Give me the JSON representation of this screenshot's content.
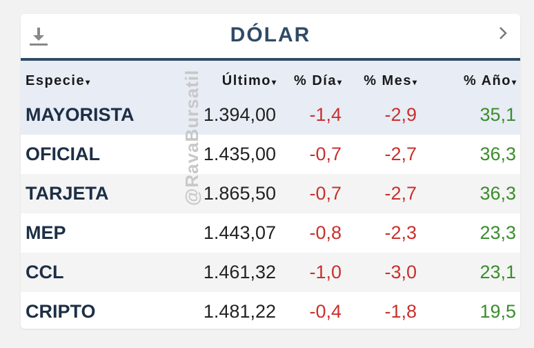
{
  "widget": {
    "title": "DÓLAR",
    "watermark": "@RavaBursatil",
    "columns": [
      {
        "label": "Especie",
        "sort": "▾"
      },
      {
        "label": "Último",
        "sort": "▾"
      },
      {
        "label": "% Día",
        "sort": "▾"
      },
      {
        "label": "% Mes",
        "sort": "▾"
      },
      {
        "label": "% Año",
        "sort": "▾"
      }
    ],
    "rows": [
      {
        "name": "MAYORISTA",
        "last": "1.394,00",
        "day": "-1,4",
        "month": "-2,9",
        "year": "35,1"
      },
      {
        "name": "OFICIAL",
        "last": "1.435,00",
        "day": "-0,7",
        "month": "-2,7",
        "year": "36,3"
      },
      {
        "name": "TARJETA",
        "last": "1.865,50",
        "day": "-0,7",
        "month": "-2,7",
        "year": "36,3"
      },
      {
        "name": "MEP",
        "last": "1.443,07",
        "day": "-0,8",
        "month": "-2,3",
        "year": "23,3"
      },
      {
        "name": "CCL",
        "last": "1.461,32",
        "day": "-1,0",
        "month": "-3,0",
        "year": "23,1"
      },
      {
        "name": "CRIPTO",
        "last": "1.481,22",
        "day": "-0,4",
        "month": "-1,8",
        "year": "19,5"
      }
    ]
  },
  "icons": {
    "download": "download-icon",
    "next": "chevron-right-icon"
  },
  "colors": {
    "accent": "#2f4b66",
    "negative": "#c9302c",
    "positive": "#3a8d2c",
    "header_bg": "#e7ecf5"
  }
}
